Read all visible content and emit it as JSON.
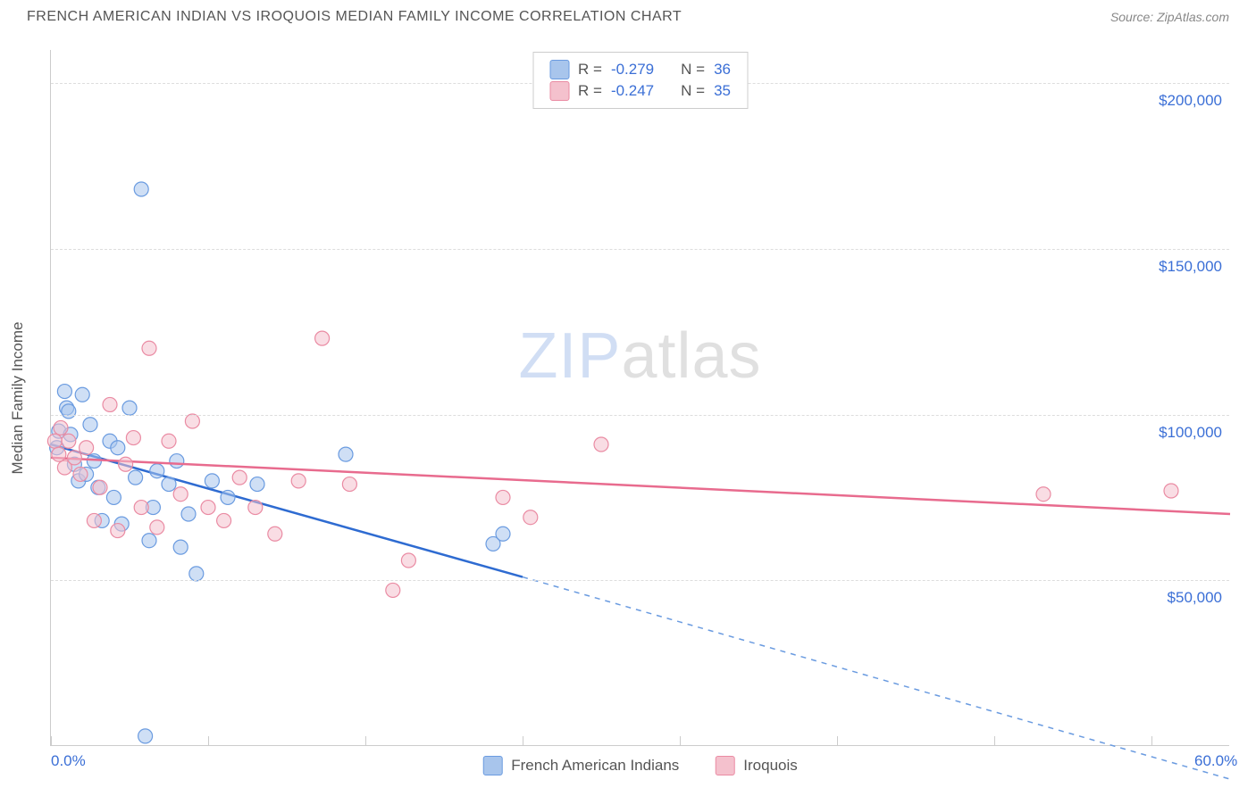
{
  "title": "FRENCH AMERICAN INDIAN VS IROQUOIS MEDIAN FAMILY INCOME CORRELATION CHART",
  "source": "Source: ZipAtlas.com",
  "watermark_left": "ZIP",
  "watermark_right": "atlas",
  "y_axis_title": "Median Family Income",
  "chart": {
    "type": "scatter",
    "background_color": "#ffffff",
    "grid_color": "#dddddd",
    "axis_color": "#cccccc",
    "label_color": "#3b6fd6",
    "title_fontsize": 16,
    "label_fontsize": 17,
    "xlim": [
      0,
      60
    ],
    "ylim": [
      0,
      210000
    ],
    "x_ticks": [
      0,
      8,
      16,
      24,
      32,
      40,
      48,
      56
    ],
    "x_tick_labels": {
      "0": "0.0%",
      "60": "60.0%"
    },
    "y_gridlines": [
      50000,
      100000,
      150000,
      200000
    ],
    "y_labels": [
      "$50,000",
      "$100,000",
      "$150,000",
      "$200,000"
    ],
    "marker_radius": 8,
    "marker_opacity": 0.55,
    "line_width": 2.5,
    "series": [
      {
        "name": "French American Indians",
        "fill": "#a8c5ec",
        "stroke": "#6a9be0",
        "line_color": "#2e6bd1",
        "r_label": "R =",
        "r_value": "-0.279",
        "n_label": "N =",
        "n_value": "36",
        "trend": {
          "x1": 0,
          "y1": 91000,
          "x2": 24,
          "y2": 51000,
          "extend_x": 60,
          "extend_y": -10000
        },
        "points": [
          [
            0.3,
            90000
          ],
          [
            0.4,
            95000
          ],
          [
            0.7,
            107000
          ],
          [
            0.8,
            102000
          ],
          [
            0.9,
            101000
          ],
          [
            1.0,
            94000
          ],
          [
            1.2,
            85000
          ],
          [
            1.4,
            80000
          ],
          [
            1.6,
            106000
          ],
          [
            1.8,
            82000
          ],
          [
            2.0,
            97000
          ],
          [
            2.2,
            86000
          ],
          [
            2.4,
            78000
          ],
          [
            2.6,
            68000
          ],
          [
            3.0,
            92000
          ],
          [
            3.2,
            75000
          ],
          [
            3.4,
            90000
          ],
          [
            3.6,
            67000
          ],
          [
            4.0,
            102000
          ],
          [
            4.3,
            81000
          ],
          [
            4.6,
            168000
          ],
          [
            4.8,
            3000
          ],
          [
            5.0,
            62000
          ],
          [
            5.2,
            72000
          ],
          [
            5.4,
            83000
          ],
          [
            6.0,
            79000
          ],
          [
            6.4,
            86000
          ],
          [
            6.6,
            60000
          ],
          [
            7.0,
            70000
          ],
          [
            7.4,
            52000
          ],
          [
            8.2,
            80000
          ],
          [
            9.0,
            75000
          ],
          [
            10.5,
            79000
          ],
          [
            15.0,
            88000
          ],
          [
            22.5,
            61000
          ],
          [
            23.0,
            64000
          ]
        ]
      },
      {
        "name": "Iroquois",
        "fill": "#f4c1cd",
        "stroke": "#ea8ba3",
        "line_color": "#e86b8e",
        "r_label": "R =",
        "r_value": "-0.247",
        "n_label": "N =",
        "n_value": "35",
        "trend": {
          "x1": 0,
          "y1": 87000,
          "x2": 60,
          "y2": 70000
        },
        "points": [
          [
            0.2,
            92000
          ],
          [
            0.4,
            88000
          ],
          [
            0.5,
            96000
          ],
          [
            0.7,
            84000
          ],
          [
            0.9,
            92000
          ],
          [
            1.2,
            87000
          ],
          [
            1.5,
            82000
          ],
          [
            1.8,
            90000
          ],
          [
            2.2,
            68000
          ],
          [
            2.5,
            78000
          ],
          [
            3.0,
            103000
          ],
          [
            3.4,
            65000
          ],
          [
            3.8,
            85000
          ],
          [
            4.2,
            93000
          ],
          [
            4.6,
            72000
          ],
          [
            5.0,
            120000
          ],
          [
            5.4,
            66000
          ],
          [
            6.0,
            92000
          ],
          [
            6.6,
            76000
          ],
          [
            7.2,
            98000
          ],
          [
            8.0,
            72000
          ],
          [
            8.8,
            68000
          ],
          [
            9.6,
            81000
          ],
          [
            10.4,
            72000
          ],
          [
            11.4,
            64000
          ],
          [
            12.6,
            80000
          ],
          [
            13.8,
            123000
          ],
          [
            15.2,
            79000
          ],
          [
            17.4,
            47000
          ],
          [
            18.2,
            56000
          ],
          [
            23.0,
            75000
          ],
          [
            24.4,
            69000
          ],
          [
            28.0,
            91000
          ],
          [
            50.5,
            76000
          ],
          [
            57.0,
            77000
          ]
        ]
      }
    ]
  },
  "legend_bottom": [
    {
      "label": "French American Indians",
      "fill": "#a8c5ec",
      "stroke": "#6a9be0"
    },
    {
      "label": "Iroquois",
      "fill": "#f4c1cd",
      "stroke": "#ea8ba3"
    }
  ]
}
